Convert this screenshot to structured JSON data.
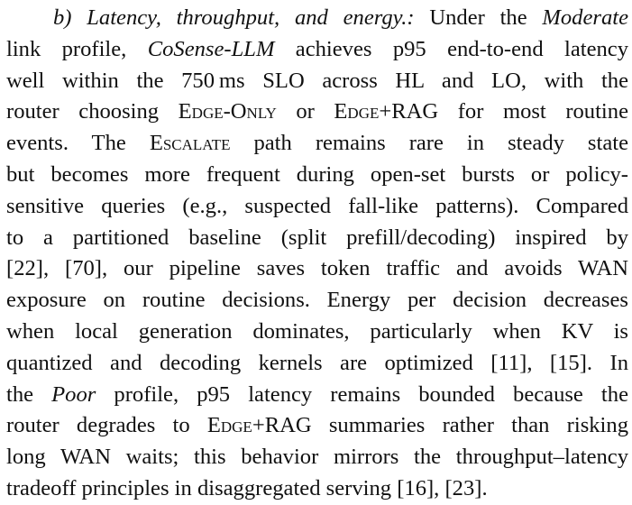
{
  "section_heading": "b) Latency, throughput, and energy.:",
  "lines": [
    [
      {
        "t": "b) Latency, throughput, and energy.:",
        "s": "it"
      },
      {
        "t": " Under the ",
        "s": ""
      },
      {
        "t": "Moderate",
        "s": "it"
      }
    ],
    [
      {
        "t": "link profile, ",
        "s": ""
      },
      {
        "t": "CoSense-LLM",
        "s": "it"
      },
      {
        "t": " achieves p95 end-to-end latency",
        "s": ""
      }
    ],
    [
      {
        "t": "well within the 750 ms SLO across HL and LO, with the",
        "s": ""
      }
    ],
    [
      {
        "t": "router choosing ",
        "s": ""
      },
      {
        "t": "Edge-Only",
        "s": "sc"
      },
      {
        "t": " or ",
        "s": ""
      },
      {
        "t": "Edge+RAG",
        "s": "sc"
      },
      {
        "t": " for most routine",
        "s": ""
      }
    ],
    [
      {
        "t": "events. The ",
        "s": ""
      },
      {
        "t": "Escalate",
        "s": "sc"
      },
      {
        "t": " path remains rare in steady state",
        "s": ""
      }
    ],
    [
      {
        "t": "but becomes more frequent during open-set bursts or policy-",
        "s": ""
      }
    ],
    [
      {
        "t": "sensitive queries (e.g., suspected fall-like patterns). Compared",
        "s": ""
      }
    ],
    [
      {
        "t": "to a partitioned baseline (split prefill/decoding) inspired by",
        "s": ""
      }
    ],
    [
      {
        "t": "[22], [70], our pipeline saves token traffic and avoids WAN",
        "s": ""
      }
    ],
    [
      {
        "t": "exposure on routine decisions. Energy per decision decreases",
        "s": ""
      }
    ],
    [
      {
        "t": "when local generation dominates, particularly when KV is",
        "s": ""
      }
    ],
    [
      {
        "t": "quantized and decoding kernels are optimized [11], [15]. In",
        "s": ""
      }
    ],
    [
      {
        "t": "the ",
        "s": ""
      },
      {
        "t": "Poor",
        "s": "it"
      },
      {
        "t": " profile, p95 latency remains bounded because the",
        "s": ""
      }
    ],
    [
      {
        "t": "router degrades to ",
        "s": ""
      },
      {
        "t": "Edge+RAG",
        "s": "sc"
      },
      {
        "t": " summaries rather than risking",
        "s": ""
      }
    ],
    [
      {
        "t": "long WAN waits; this behavior mirrors the throughput–latency",
        "s": ""
      }
    ],
    [
      {
        "t": "tradeoff principles in disaggregated serving [16], [23].",
        "s": ""
      }
    ]
  ]
}
